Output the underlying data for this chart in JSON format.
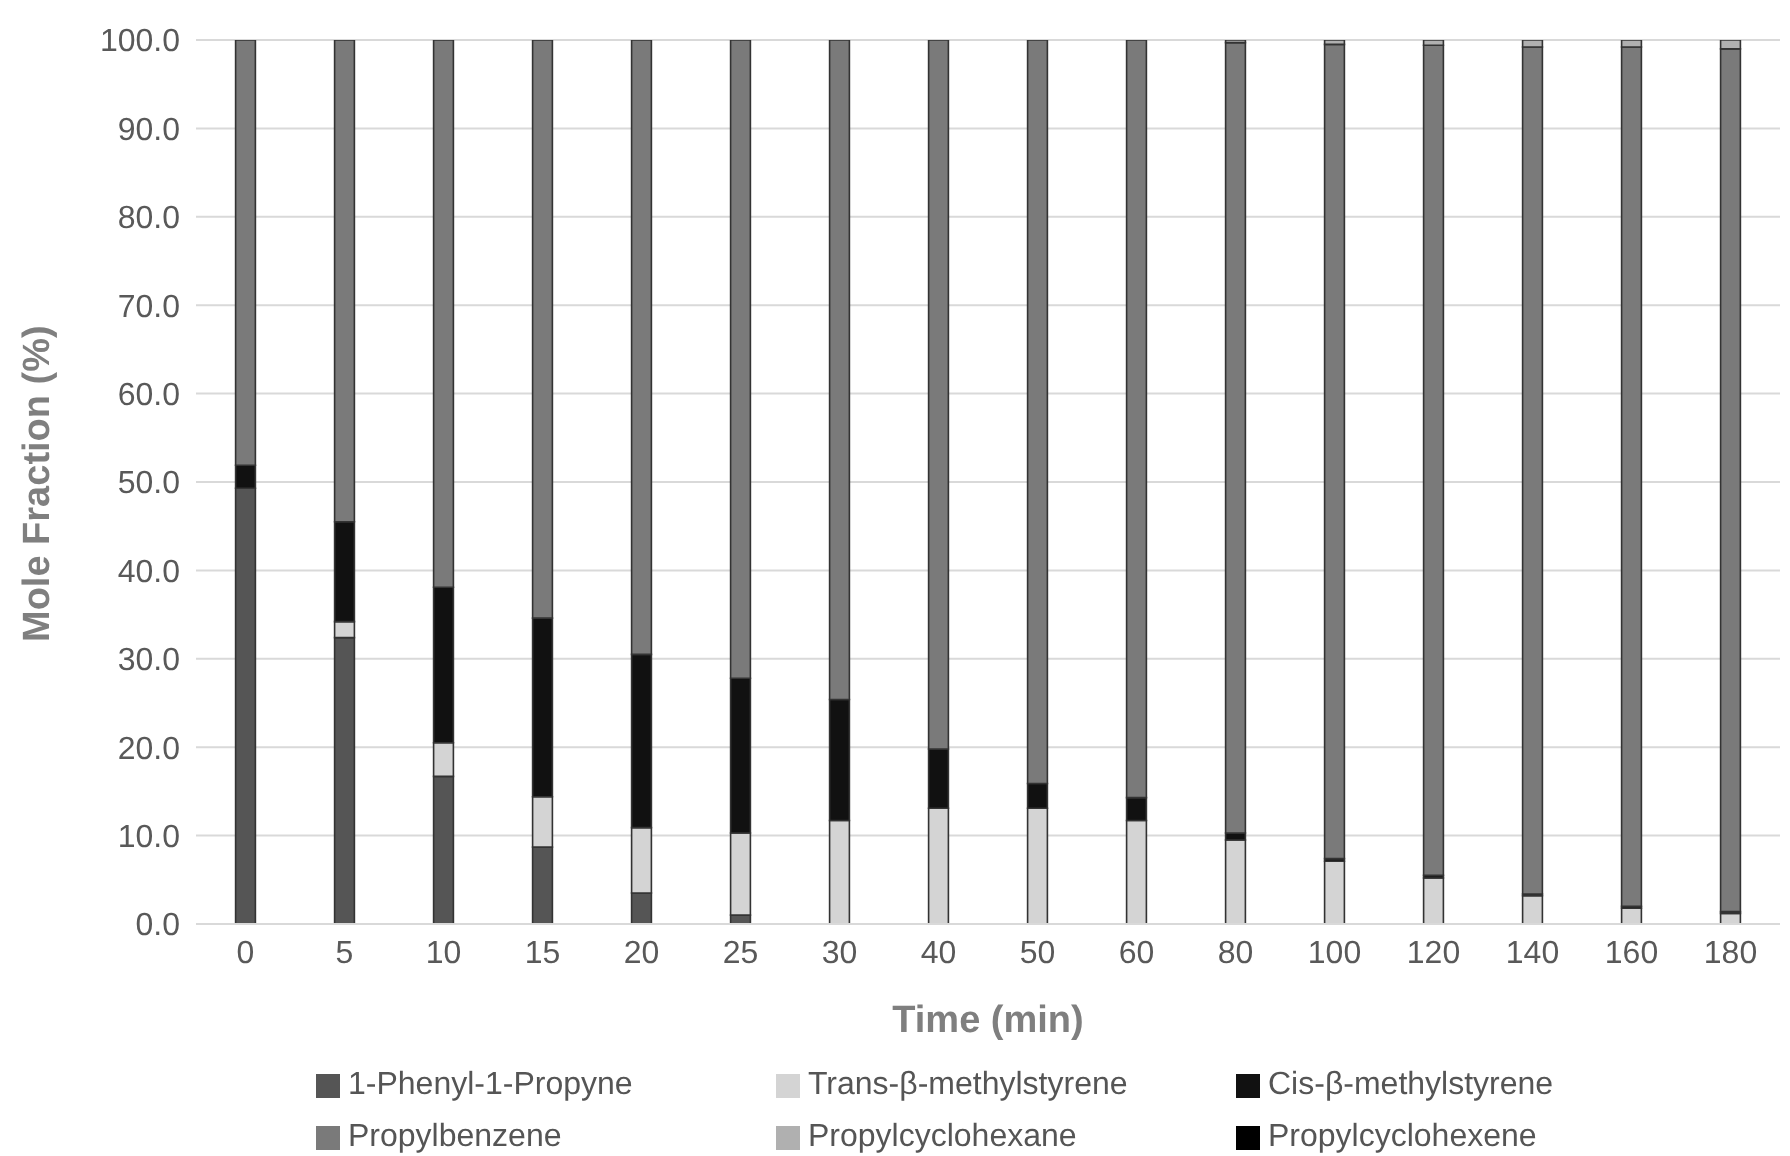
{
  "chart_data": {
    "type": "bar",
    "stacked": true,
    "xlabel": "Time (min)",
    "ylabel": "Mole Fraction (%)",
    "categories": [
      "0",
      "5",
      "10",
      "15",
      "20",
      "25",
      "30",
      "40",
      "50",
      "60",
      "80",
      "100",
      "120",
      "140",
      "160",
      "180"
    ],
    "series": [
      {
        "name": "1-Phenyl-1-Propyne",
        "color": "#555555",
        "values": [
          49.3,
          32.4,
          16.7,
          8.7,
          3.5,
          1.0,
          0,
          0,
          0,
          0,
          0,
          0,
          0,
          0,
          0,
          0
        ]
      },
      {
        "name": "Trans-β-methylstyrene",
        "color": "#d4d4d4",
        "values": [
          0,
          1.8,
          3.8,
          5.7,
          7.4,
          9.3,
          11.7,
          13.1,
          13.1,
          11.7,
          9.5,
          7.1,
          5.2,
          3.2,
          1.8,
          1.2
        ]
      },
      {
        "name": "Cis-β-methylstyrene",
        "color": "#111111",
        "values": [
          2.6,
          11.3,
          17.6,
          20.2,
          19.6,
          17.5,
          13.7,
          6.7,
          2.8,
          2.6,
          0.8,
          0.3,
          0.3,
          0.2,
          0.2,
          0.2
        ]
      },
      {
        "name": "Propylbenzene",
        "color": "#7a7a7a",
        "values": [
          48.1,
          54.5,
          61.9,
          65.4,
          69.5,
          72.2,
          74.6,
          80.2,
          84.1,
          85.7,
          89.4,
          92.1,
          93.9,
          95.8,
          97.2,
          97.6
        ]
      },
      {
        "name": "Propylcyclohexane",
        "color": "#b0b0b0",
        "values": [
          0,
          0,
          0,
          0,
          0,
          0,
          0,
          0,
          0,
          0,
          0.3,
          0.5,
          0.6,
          0.8,
          0.8,
          1.0
        ]
      },
      {
        "name": "Propylcyclohexene",
        "color": "#000000",
        "values": [
          0,
          0,
          0,
          0,
          0,
          0,
          0,
          0,
          0,
          0,
          0,
          0,
          0,
          0,
          0,
          0
        ]
      }
    ],
    "ylim": [
      0,
      100
    ],
    "yticks": [
      {
        "value": 0,
        "label": "0.0"
      },
      {
        "value": 10,
        "label": "10.0"
      },
      {
        "value": 20,
        "label": "20.0"
      },
      {
        "value": 30,
        "label": "30.0"
      },
      {
        "value": 40,
        "label": "40.0"
      },
      {
        "value": 50,
        "label": "50.0"
      },
      {
        "value": 60,
        "label": "60.0"
      },
      {
        "value": 70,
        "label": "70.0"
      },
      {
        "value": 80,
        "label": "80.0"
      },
      {
        "value": 90,
        "label": "90.0"
      },
      {
        "value": 100,
        "label": "100.0"
      }
    ],
    "grid": "y",
    "legend": "bottom"
  }
}
